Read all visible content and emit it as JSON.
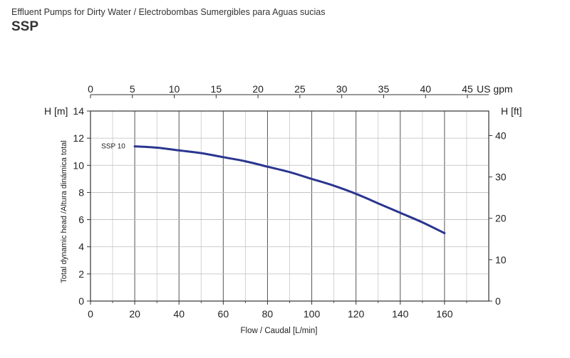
{
  "header": {
    "subtitle": "Effluent Pumps for Dirty Water / Electrobombas Sumergibles para Aguas sucias",
    "title": "SSP"
  },
  "chart_data": {
    "type": "line",
    "xlabel": "Flow / Caudal [L/min]",
    "ylabel": "Total dynamic head /Altura dinámica total",
    "y_left_label": "H [m]",
    "y_right_label": "H [ft]",
    "top_axis_unit": "US gpm",
    "xlim": [
      0,
      180
    ],
    "ylim": [
      0,
      14
    ],
    "x_ticks": [
      0,
      20,
      40,
      60,
      80,
      100,
      120,
      140,
      160
    ],
    "x_minor_step": 10,
    "y_ticks": [
      0,
      2,
      4,
      6,
      8,
      10,
      12,
      14
    ],
    "y_right_ticks": [
      0,
      10,
      20,
      30,
      40
    ],
    "top_ticks": [
      0,
      5,
      10,
      15,
      20,
      25,
      30,
      35,
      40,
      45
    ],
    "grid": true,
    "series": [
      {
        "name": "SSP 10",
        "color": "#2a3590",
        "x": [
          20,
          30,
          40,
          50,
          60,
          70,
          80,
          90,
          100,
          110,
          120,
          130,
          140,
          150,
          160
        ],
        "y": [
          11.4,
          11.3,
          11.1,
          10.9,
          10.6,
          10.3,
          9.9,
          9.5,
          9.0,
          8.5,
          7.9,
          7.2,
          6.5,
          5.8,
          5.0
        ]
      }
    ]
  }
}
